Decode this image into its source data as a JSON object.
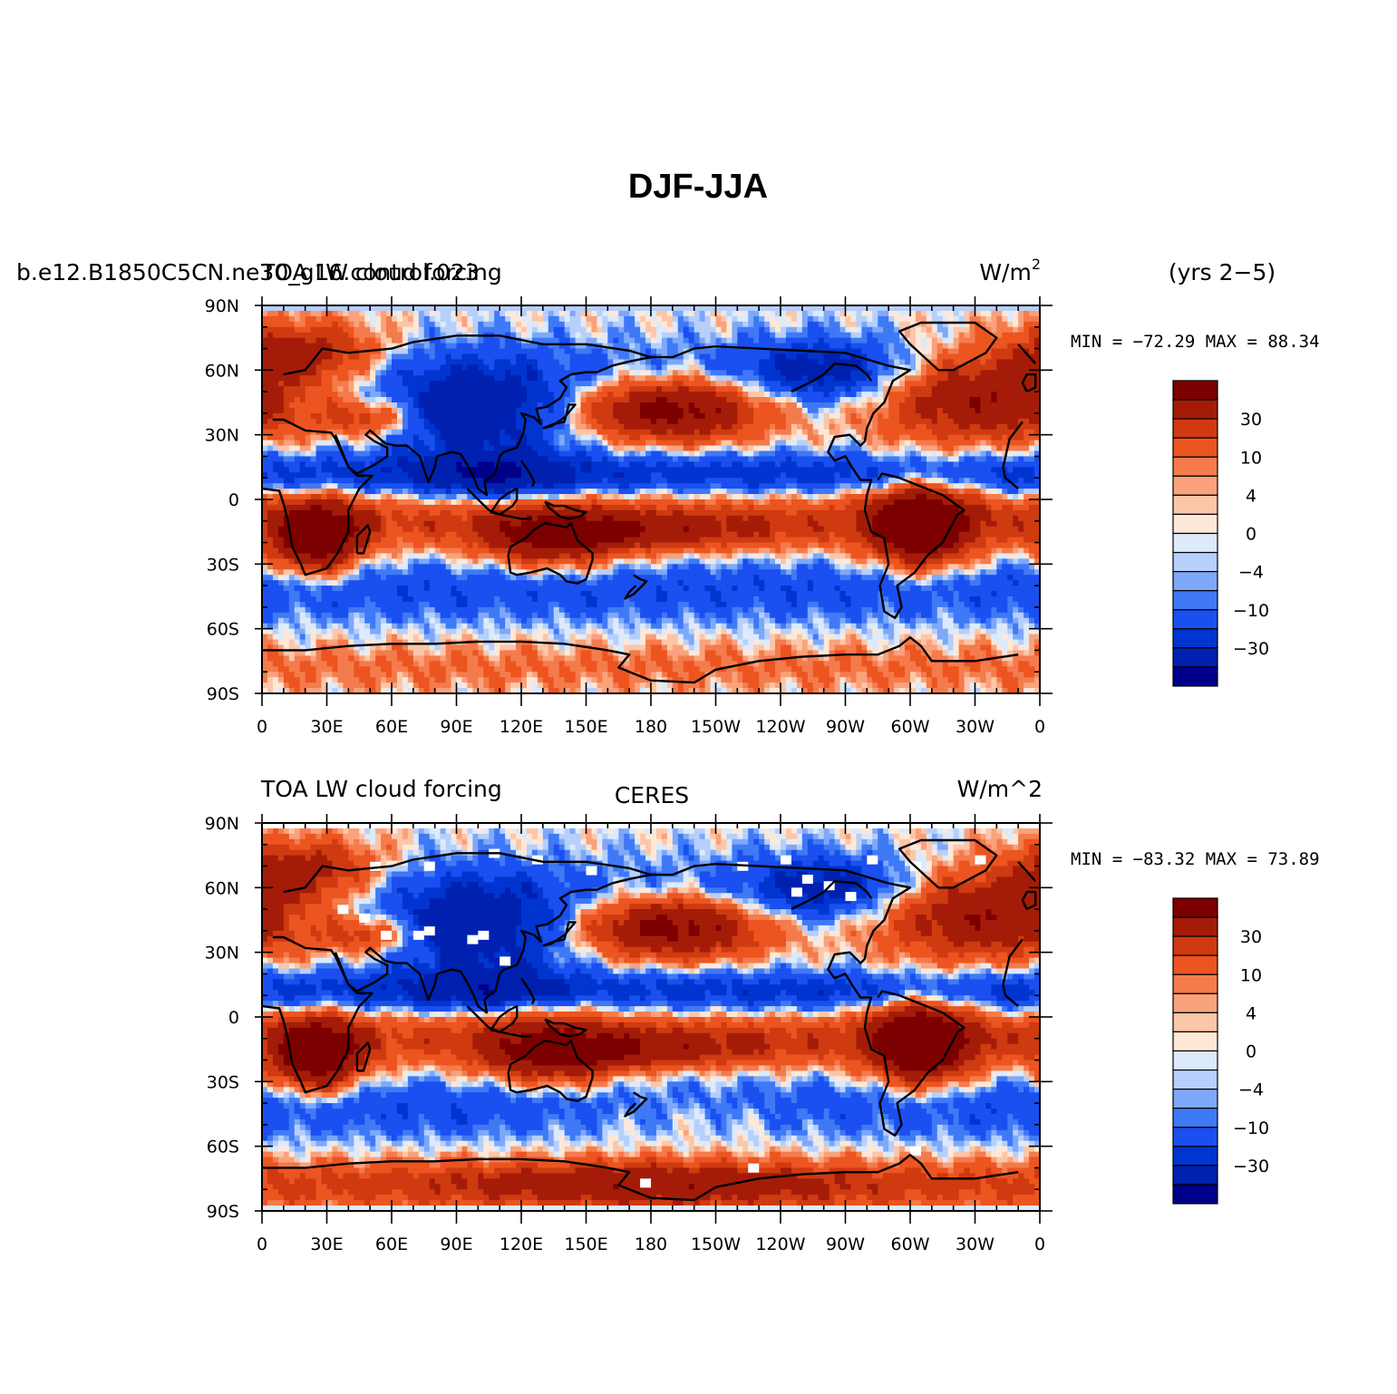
{
  "figure": {
    "title": "DJF-JJA",
    "colors": {
      "levels": [
        "#00008b",
        "#0020b0",
        "#0035d0",
        "#1a4ff0",
        "#3f79f5",
        "#7ea8f8",
        "#b6cffb",
        "#dceafc",
        "#fde8d8",
        "#fcc6a8",
        "#f9a27c",
        "#f47b4c",
        "#ec5420",
        "#cf3a10",
        "#a41c08",
        "#7d0000"
      ],
      "coastline": "#000000"
    }
  },
  "panels": [
    {
      "id": "model",
      "left_title": "b.e12.B1850C5CN.ne30_g16.control.023",
      "left_title_overlap": "TOA LW cloud forcing",
      "center_title": "",
      "right_title": "W/m",
      "right_title_sup": "2",
      "extra_label": "(yrs 2−5)",
      "stats": "MIN = −72.29  MAX =  88.34",
      "seed": 11
    },
    {
      "id": "obs",
      "left_title": "TOA LW cloud forcing",
      "center_title": "CERES",
      "right_title": "W/m^2",
      "stats": "MIN = −83.32  MAX =  73.89",
      "seed": 37
    }
  ],
  "map_axes": {
    "lat_labels": [
      "90N",
      "60N",
      "30N",
      "0",
      "30S",
      "60S",
      "90S"
    ],
    "lon_labels": [
      "0",
      "30E",
      "60E",
      "90E",
      "120E",
      "150E",
      "180",
      "150W",
      "120W",
      "90W",
      "60W",
      "30W",
      "0"
    ]
  },
  "colorbar": {
    "labels": [
      "30",
      "10",
      "4",
      "0",
      "−4",
      "−10",
      "−30"
    ]
  },
  "chart_data": [
    {
      "type": "heatmap",
      "title": "TOA LW cloud forcing",
      "case": "b.e12.B1850C5CN.ne30_g16.control.023",
      "units": "W/m2",
      "period": "(yrs 2−5)",
      "lat_range": [
        -90,
        90
      ],
      "lon_range": [
        0,
        360
      ],
      "min": -72.29,
      "max": 88.34,
      "contour_levels_labeled": [
        -30,
        -10,
        -4,
        0,
        4,
        10,
        30
      ]
    },
    {
      "type": "heatmap",
      "title": "TOA LW cloud forcing",
      "source": "CERES",
      "units": "W/m^2",
      "lat_range": [
        -90,
        90
      ],
      "lon_range": [
        0,
        360
      ],
      "min": -83.32,
      "max": 73.89,
      "contour_levels_labeled": [
        -30,
        -10,
        -4,
        0,
        4,
        10,
        30
      ]
    }
  ]
}
